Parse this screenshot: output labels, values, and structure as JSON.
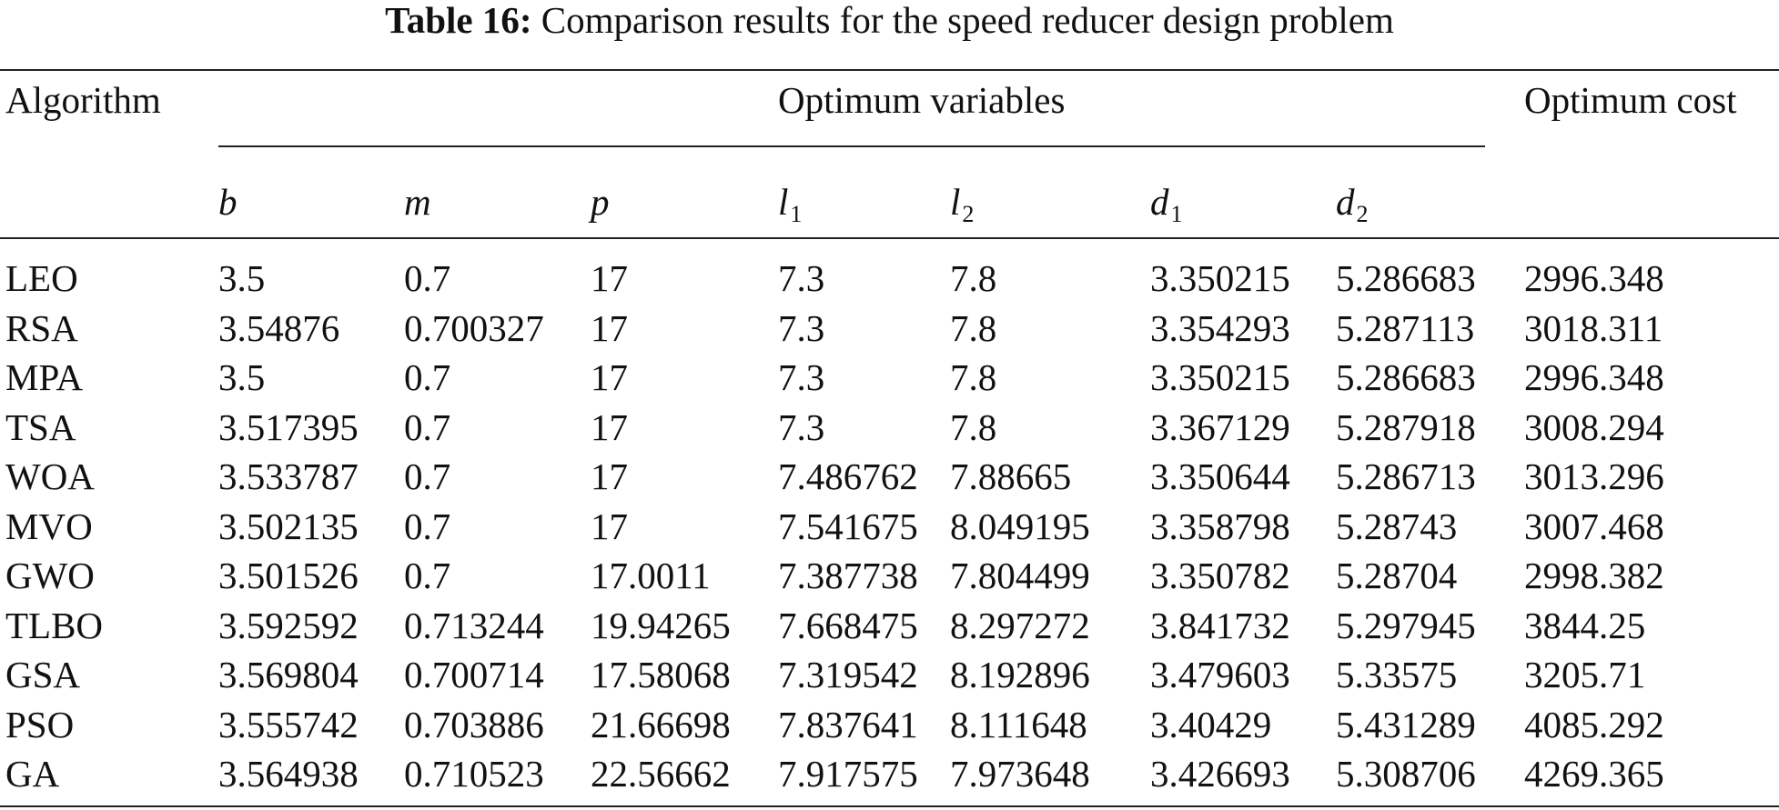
{
  "caption": {
    "label": "Table 16:",
    "text": "Comparison results for the speed reducer design problem"
  },
  "header": {
    "algorithm": "Algorithm",
    "optimum_variables": "Optimum variables",
    "optimum_cost": "Optimum cost"
  },
  "variables": [
    {
      "sym": "b",
      "sub": ""
    },
    {
      "sym": "m",
      "sub": ""
    },
    {
      "sym": "p",
      "sub": ""
    },
    {
      "sym": "l",
      "sub": "1"
    },
    {
      "sym": "l",
      "sub": "2"
    },
    {
      "sym": "d",
      "sub": "1"
    },
    {
      "sym": "d",
      "sub": "2"
    }
  ],
  "rows": [
    [
      "LEO",
      "3.5",
      "0.7",
      "17",
      "7.3",
      "7.8",
      "3.350215",
      "5.286683",
      "2996.348"
    ],
    [
      "RSA",
      "3.54876",
      "0.700327",
      "17",
      "7.3",
      "7.8",
      "3.354293",
      "5.287113",
      "3018.311"
    ],
    [
      "MPA",
      "3.5",
      "0.7",
      "17",
      "7.3",
      "7.8",
      "3.350215",
      "5.286683",
      "2996.348"
    ],
    [
      "TSA",
      "3.517395",
      "0.7",
      "17",
      "7.3",
      "7.8",
      "3.367129",
      "5.287918",
      "3008.294"
    ],
    [
      "WOA",
      "3.533787",
      "0.7",
      "17",
      "7.486762",
      "7.88665",
      "3.350644",
      "5.286713",
      "3013.296"
    ],
    [
      "MVO",
      "3.502135",
      "0.7",
      "17",
      "7.541675",
      "8.049195",
      "3.358798",
      "5.28743",
      "3007.468"
    ],
    [
      "GWO",
      "3.501526",
      "0.7",
      "17.0011",
      "7.387738",
      "7.804499",
      "3.350782",
      "5.28704",
      "2998.382"
    ],
    [
      "TLBO",
      "3.592592",
      "0.713244",
      "19.94265",
      "7.668475",
      "8.297272",
      "3.841732",
      "5.297945",
      "3844.25"
    ],
    [
      "GSA",
      "3.569804",
      "0.700714",
      "17.58068",
      "7.319542",
      "8.192896",
      "3.479603",
      "5.33575",
      "3205.71"
    ],
    [
      "PSO",
      "3.555742",
      "0.703886",
      "21.66698",
      "7.837641",
      "8.111648",
      "3.40429",
      "5.431289",
      "4085.292"
    ],
    [
      "GA",
      "3.564938",
      "0.710523",
      "22.56662",
      "7.917575",
      "7.973648",
      "3.426693",
      "5.308706",
      "4269.365"
    ]
  ]
}
